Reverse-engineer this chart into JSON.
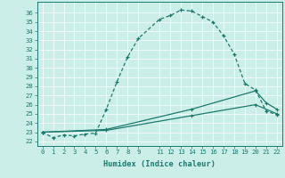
{
  "xlabel": "Humidex (Indice chaleur)",
  "bg_color": "#cceee8",
  "line_color": "#1a7a6e",
  "grid_color": "#b0d8d0",
  "xlim": [
    -0.5,
    22.5
  ],
  "ylim": [
    21.5,
    37.2
  ],
  "x_ticks": [
    0,
    1,
    2,
    3,
    4,
    5,
    6,
    7,
    8,
    9,
    11,
    12,
    13,
    14,
    15,
    16,
    17,
    18,
    19,
    20,
    21,
    22
  ],
  "y_ticks": [
    22,
    23,
    24,
    25,
    26,
    27,
    28,
    29,
    30,
    31,
    32,
    33,
    34,
    35,
    36
  ],
  "curve1_x": [
    0,
    1,
    2,
    3,
    4,
    5,
    6,
    7,
    8,
    9,
    11,
    12,
    13,
    14,
    15,
    16,
    17,
    18,
    19,
    20,
    21,
    22
  ],
  "curve1_y": [
    23.0,
    22.4,
    22.7,
    22.6,
    22.8,
    22.9,
    25.5,
    28.5,
    31.2,
    33.2,
    35.3,
    35.7,
    36.3,
    36.2,
    35.6,
    35.0,
    33.5,
    31.5,
    28.3,
    27.6,
    25.3,
    24.9
  ],
  "curve2_x": [
    0,
    6,
    14,
    20,
    21,
    22
  ],
  "curve2_y": [
    23.0,
    23.3,
    25.5,
    27.5,
    26.2,
    25.5
  ],
  "curve3_x": [
    0,
    6,
    14,
    20,
    22
  ],
  "curve3_y": [
    23.0,
    23.2,
    24.8,
    26.0,
    25.0
  ]
}
